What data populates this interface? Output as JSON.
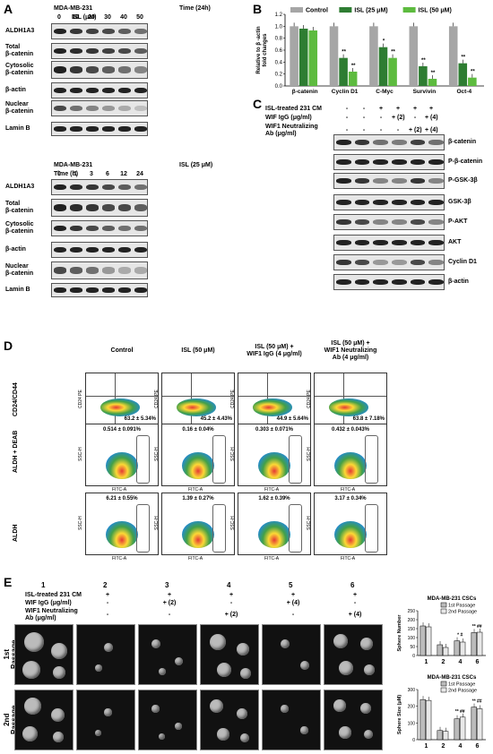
{
  "panelA": {
    "label": "A",
    "top": {
      "cell": "MDA-MB-231",
      "treatment": "Time (24h)",
      "dose_label": "ISL (μM)",
      "doses": [
        "0",
        "10",
        "20",
        "30",
        "40",
        "50"
      ],
      "rows": [
        "ALDH1A3",
        "Total\nβ-catenin",
        "Cytosolic\nβ-catenin",
        "β-actin",
        "Nuclear\nβ-catenin",
        "Lamin B"
      ]
    },
    "bottom": {
      "cell": "MDA-MB-231",
      "treatment": "ISL (25 μM)",
      "time_label": "Time (h)",
      "times": [
        "0",
        "1",
        "3",
        "6",
        "12",
        "24"
      ],
      "rows": [
        "ALDH1A3",
        "Total\nβ-catenin",
        "Cytosolic\nβ-catenin",
        "β-actin",
        "Nuclear\nβ-catenin",
        "Lamin B"
      ]
    }
  },
  "panelB": {
    "label": "B",
    "chart_data": {
      "type": "bar",
      "categories": [
        "β-catenin",
        "Cyclin D1",
        "C-Myc",
        "Survivin",
        "Oct-4"
      ],
      "series": [
        {
          "name": "Control",
          "values": [
            1.0,
            1.0,
            1.0,
            1.0,
            1.0
          ],
          "color": "#a6a6a6"
        },
        {
          "name": "ISL (25 μM)",
          "values": [
            0.96,
            0.47,
            0.65,
            0.33,
            0.38
          ],
          "color": "#2e7d32"
        },
        {
          "name": "ISL (50 μM)",
          "values": [
            0.93,
            0.24,
            0.47,
            0.12,
            0.14
          ],
          "color": "#5dbb3f"
        }
      ],
      "ylabel": "Relative to β -actin\nfold changes",
      "ylim": [
        0,
        1.2
      ],
      "yticks": [
        "0.0",
        "0.2",
        "0.4",
        "0.6",
        "0.8",
        "1.0",
        "1.2"
      ],
      "sig": [
        [
          "",
          ""
        ],
        [
          "**",
          "**"
        ],
        [
          "*",
          "**"
        ],
        [
          "**",
          "**"
        ],
        [
          "**",
          "**"
        ]
      ]
    }
  },
  "panelC": {
    "label": "C",
    "conditions": [
      {
        "label": "ISL-treated 231 CM",
        "values": [
          "-",
          "-",
          "+",
          "+",
          "+",
          "+"
        ]
      },
      {
        "label": "WIF IgG (μg/ml)",
        "values": [
          "-",
          "-",
          "-",
          "+ (2)",
          "-",
          "+ (4)"
        ]
      },
      {
        "label": "WIF1 Neutralizing\nAb (μg/ml)",
        "values": [
          "-",
          "-",
          "-",
          "-",
          "+ (2)",
          "+ (4)"
        ]
      }
    ],
    "rows": [
      "β-catenin",
      "P-β-catenin",
      "P-GSK-3β",
      "GSK-3β",
      "P-AKT",
      "AKT",
      "Cyclin D1",
      "β-actin"
    ]
  },
  "panelD": {
    "label": "D",
    "columns": [
      "Control",
      "ISL (50 μM)",
      "ISL (50 μM) +\nWIF1 IgG (4 μg/ml)",
      "ISL (50 μM) +\nWIF1 Neutralizing\nAb (4 μg/ml)"
    ],
    "row_labels": [
      "CD24/CD44",
      "ALDH + DEAB",
      "ALDH"
    ],
    "values": [
      [
        "63.2 ± 5.34%",
        "45.2 ± 4.43%",
        "44.9 ± 5.64%",
        "63.8 ± 7.18%"
      ],
      [
        "0.514 ± 0.091%",
        "0.16 ± 0.04%",
        "0.303 ± 0.071%",
        "0.432 ± 0.043%"
      ],
      [
        "6.21 ± 0.55%",
        "1.39 ± 0.27%",
        "1.62 ± 0.39%",
        "3.17 ± 0.34%"
      ]
    ],
    "axis_cd": {
      "x": "CD44 FITC",
      "y": "CD24 PE"
    },
    "axis_aldh": {
      "x": "FITC-A",
      "y": "SSC-H"
    }
  },
  "panelE": {
    "label": "E",
    "lane_numbers": [
      "1",
      "2",
      "3",
      "4",
      "5",
      "6"
    ],
    "conditions": [
      {
        "label": "ISL-treated 231 CM",
        "values": [
          "-",
          "+",
          "+",
          "+",
          "+",
          "+"
        ]
      },
      {
        "label": "WIF IgG (μg/ml)",
        "values": [
          "-",
          "-",
          "+ (2)",
          "-",
          "+ (4)",
          "-"
        ]
      },
      {
        "label": "WIF1 Neutralizing\nAb (μg/ml)",
        "values": [
          "-",
          "-",
          "-",
          "+ (2)",
          "-",
          "+ (4)"
        ]
      }
    ],
    "rows": [
      "1st\nPassage",
      "2nd\nPassage"
    ],
    "chart_data": [
      {
        "type": "bar",
        "title": "MDA-MB-231 CSCs",
        "categories": [
          "1",
          "2",
          "4",
          "6"
        ],
        "series": [
          {
            "name": "1st Passage",
            "values": [
              165,
              60,
              82,
              128
            ]
          },
          {
            "name": "2nd Passage",
            "values": [
              160,
              45,
              75,
              130
            ]
          }
        ],
        "ylabel": "Sphere Number",
        "ylim": [
          0,
          250
        ],
        "yticks": [
          "0",
          "50",
          "100",
          "150",
          "200",
          "250"
        ],
        "sig": [
          "",
          "",
          "* #",
          "** ##"
        ]
      },
      {
        "type": "bar",
        "title": "MDA-MB-231 CSCs",
        "categories": [
          "1",
          "2",
          "4",
          "6"
        ],
        "series": [
          {
            "name": "1st Passage",
            "values": [
              240,
              55,
              125,
              195
            ]
          },
          {
            "name": "2nd Passage",
            "values": [
              235,
              50,
              135,
              185
            ]
          }
        ],
        "ylabel": "Sphere Size (μM)",
        "ylim": [
          0,
          300
        ],
        "yticks": [
          "0",
          "100",
          "200",
          "300"
        ],
        "sig": [
          "",
          "",
          "** ##",
          "** ##"
        ]
      }
    ]
  }
}
